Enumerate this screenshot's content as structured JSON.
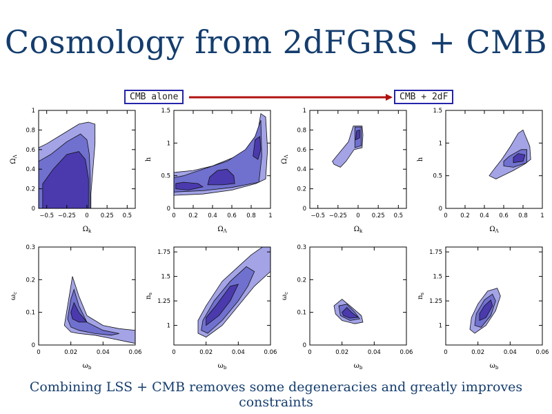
{
  "title": "Cosmology from 2dFGRS + CMB",
  "caption": "Combining LSS + CMB removes some degeneracies and greatly improves constraints",
  "labels": {
    "left": "CMB alone",
    "right": "CMB + 2dF"
  },
  "colors": {
    "arrow": "#b01010",
    "box_border": "#2424a8",
    "contour_outer": "#a3a3e6",
    "contour_mid": "#7070cf",
    "contour_inner": "#4a3aad",
    "title": "#143d6e"
  },
  "chart_data": [
    {
      "type": "contour",
      "group": "CMB alone",
      "xlabel": "Ωk",
      "ylabel": "ΩΛ",
      "xlim": [
        -0.6,
        0.6
      ],
      "ylim": [
        0,
        1
      ],
      "xticks": [
        -0.5,
        -0.25,
        0,
        0.25,
        0.5
      ],
      "xticklabels": [
        "−0.5",
        "−0.25",
        "0",
        "0.25",
        "0.5"
      ],
      "yticks": [
        0,
        0.2,
        0.4,
        0.6,
        0.8,
        1
      ],
      "yticklabels": [
        "0",
        "0.2",
        "0.4",
        "0.6",
        "0.8",
        "1"
      ],
      "regions": [
        [
          [
            -0.6,
            0
          ],
          [
            0.05,
            0
          ],
          [
            0.05,
            0.15
          ],
          [
            0.08,
            0.45
          ],
          [
            0.1,
            0.66
          ],
          [
            0.1,
            0.86
          ],
          [
            0.02,
            0.88
          ],
          [
            -0.1,
            0.86
          ],
          [
            -0.3,
            0.76
          ],
          [
            -0.5,
            0.66
          ],
          [
            -0.6,
            0.62
          ]
        ],
        [
          [
            -0.6,
            0
          ],
          [
            0.04,
            0
          ],
          [
            0.04,
            0.3
          ],
          [
            0.03,
            0.55
          ],
          [
            0.0,
            0.7
          ],
          [
            -0.08,
            0.76
          ],
          [
            -0.25,
            0.68
          ],
          [
            -0.45,
            0.55
          ],
          [
            -0.6,
            0.48
          ]
        ],
        [
          [
            -0.55,
            0
          ],
          [
            0.02,
            0
          ],
          [
            0.02,
            0.3
          ],
          [
            -0.02,
            0.5
          ],
          [
            -0.1,
            0.58
          ],
          [
            -0.25,
            0.55
          ],
          [
            -0.42,
            0.4
          ],
          [
            -0.55,
            0.25
          ]
        ]
      ]
    },
    {
      "type": "contour",
      "group": "CMB alone",
      "xlabel": "ΩΛ",
      "ylabel": "h",
      "xlim": [
        0,
        1
      ],
      "ylim": [
        0,
        1.5
      ],
      "xticks": [
        0,
        0.2,
        0.4,
        0.6,
        0.8,
        1
      ],
      "xticklabels": [
        "0",
        "0.2",
        "0.4",
        "0.6",
        "0.8",
        "1"
      ],
      "yticks": [
        0,
        0.5,
        1,
        1.5
      ],
      "yticklabels": [
        "0",
        "0.5",
        "1",
        "1.5"
      ],
      "regions": [
        [
          [
            0,
            0.2
          ],
          [
            0.3,
            0.22
          ],
          [
            0.6,
            0.28
          ],
          [
            0.85,
            0.38
          ],
          [
            0.95,
            0.45
          ],
          [
            0.97,
            0.9
          ],
          [
            0.95,
            1.4
          ],
          [
            0.9,
            1.45
          ],
          [
            0.86,
            1.1
          ],
          [
            0.8,
            0.95
          ],
          [
            0.65,
            0.8
          ],
          [
            0.4,
            0.65
          ],
          [
            0.2,
            0.58
          ],
          [
            0,
            0.55
          ]
        ],
        [
          [
            0,
            0.25
          ],
          [
            0.3,
            0.27
          ],
          [
            0.6,
            0.32
          ],
          [
            0.88,
            0.4
          ],
          [
            0.91,
            0.8
          ],
          [
            0.9,
            1.35
          ],
          [
            0.84,
            1.1
          ],
          [
            0.74,
            0.9
          ],
          [
            0.55,
            0.72
          ],
          [
            0.3,
            0.6
          ],
          [
            0.1,
            0.5
          ],
          [
            0,
            0.47
          ]
        ],
        [
          [
            0.02,
            0.3
          ],
          [
            0.15,
            0.28
          ],
          [
            0.3,
            0.33
          ],
          [
            0.25,
            0.38
          ],
          [
            0.1,
            0.4
          ],
          [
            0.02,
            0.38
          ]
        ],
        [
          [
            0.35,
            0.36
          ],
          [
            0.5,
            0.36
          ],
          [
            0.63,
            0.38
          ],
          [
            0.62,
            0.5
          ],
          [
            0.55,
            0.6
          ],
          [
            0.45,
            0.58
          ],
          [
            0.37,
            0.48
          ]
        ],
        [
          [
            0.82,
            0.8
          ],
          [
            0.87,
            0.75
          ],
          [
            0.9,
            0.9
          ],
          [
            0.89,
            1.1
          ],
          [
            0.84,
            1.05
          ]
        ]
      ]
    },
    {
      "type": "contour",
      "group": "CMB + 2dF",
      "xlabel": "Ωk",
      "ylabel": "ΩΛ",
      "xlim": [
        -0.6,
        0.6
      ],
      "ylim": [
        0,
        1
      ],
      "xticks": [
        -0.5,
        -0.25,
        0,
        0.25,
        0.5
      ],
      "xticklabels": [
        "−0.5",
        "−0.25",
        "0",
        "0.25",
        "0.5"
      ],
      "yticks": [
        0,
        0.2,
        0.4,
        0.6,
        0.8,
        1
      ],
      "yticklabels": [
        "0",
        "0.2",
        "0.4",
        "0.6",
        "0.8",
        "1"
      ],
      "regions": [
        [
          [
            -0.3,
            0.45
          ],
          [
            -0.22,
            0.42
          ],
          [
            -0.15,
            0.48
          ],
          [
            -0.05,
            0.6
          ],
          [
            0.05,
            0.62
          ],
          [
            0.06,
            0.75
          ],
          [
            0.05,
            0.84
          ],
          [
            -0.06,
            0.84
          ],
          [
            -0.12,
            0.68
          ],
          [
            -0.25,
            0.55
          ],
          [
            -0.32,
            0.48
          ]
        ],
        [
          [
            -0.04,
            0.62
          ],
          [
            0.04,
            0.64
          ],
          [
            0.04,
            0.83
          ],
          [
            -0.04,
            0.83
          ]
        ],
        [
          [
            -0.03,
            0.7
          ],
          [
            0.02,
            0.72
          ],
          [
            0.02,
            0.8
          ],
          [
            -0.02,
            0.79
          ]
        ]
      ]
    },
    {
      "type": "contour",
      "group": "CMB + 2dF",
      "xlabel": "ΩΛ",
      "ylabel": "h",
      "xlim": [
        0,
        1
      ],
      "ylim": [
        0,
        1.5
      ],
      "xticks": [
        0,
        0.2,
        0.4,
        0.6,
        0.8,
        1
      ],
      "xticklabels": [
        "0",
        "0.2",
        "0.4",
        "0.6",
        "0.8",
        "1"
      ],
      "yticks": [
        0,
        0.5,
        1,
        1.5
      ],
      "yticklabels": [
        "0",
        "0.5",
        "1",
        "1.5"
      ],
      "regions": [
        [
          [
            0.45,
            0.5
          ],
          [
            0.52,
            0.45
          ],
          [
            0.7,
            0.58
          ],
          [
            0.82,
            0.68
          ],
          [
            0.88,
            0.75
          ],
          [
            0.87,
            0.95
          ],
          [
            0.8,
            1.2
          ],
          [
            0.75,
            1.15
          ],
          [
            0.67,
            0.95
          ],
          [
            0.58,
            0.75
          ],
          [
            0.5,
            0.6
          ]
        ],
        [
          [
            0.6,
            0.65
          ],
          [
            0.7,
            0.63
          ],
          [
            0.84,
            0.7
          ],
          [
            0.84,
            0.9
          ],
          [
            0.78,
            0.9
          ],
          [
            0.66,
            0.8
          ],
          [
            0.6,
            0.72
          ]
        ],
        [
          [
            0.7,
            0.7
          ],
          [
            0.8,
            0.72
          ],
          [
            0.82,
            0.82
          ],
          [
            0.75,
            0.84
          ],
          [
            0.7,
            0.78
          ]
        ]
      ]
    },
    {
      "type": "contour",
      "group": "CMB alone",
      "xlabel": "ωb",
      "ylabel": "ωc",
      "xlim": [
        0,
        0.06
      ],
      "ylim": [
        0,
        0.3
      ],
      "xticks": [
        0,
        0.02,
        0.04,
        0.06
      ],
      "xticklabels": [
        "0",
        "0.02",
        "0.04",
        "0.06"
      ],
      "yticks": [
        0,
        0.1,
        0.2,
        0.3
      ],
      "yticklabels": [
        "0",
        "0.1",
        "0.2",
        "0.3"
      ],
      "regions": [
        [
          [
            0.016,
            0.06
          ],
          [
            0.018,
            0.12
          ],
          [
            0.021,
            0.21
          ],
          [
            0.025,
            0.15
          ],
          [
            0.03,
            0.09
          ],
          [
            0.04,
            0.06
          ],
          [
            0.05,
            0.05
          ],
          [
            0.06,
            0.045
          ],
          [
            0.06,
            0.005
          ],
          [
            0.055,
            0.01
          ],
          [
            0.045,
            0.02
          ],
          [
            0.035,
            0.03
          ],
          [
            0.025,
            0.035
          ],
          [
            0.02,
            0.04
          ]
        ],
        [
          [
            0.018,
            0.08
          ],
          [
            0.02,
            0.14
          ],
          [
            0.022,
            0.17
          ],
          [
            0.025,
            0.12
          ],
          [
            0.03,
            0.07
          ],
          [
            0.04,
            0.045
          ],
          [
            0.05,
            0.035
          ],
          [
            0.045,
            0.03
          ],
          [
            0.035,
            0.035
          ],
          [
            0.025,
            0.045
          ],
          [
            0.02,
            0.055
          ]
        ],
        [
          [
            0.02,
            0.1
          ],
          [
            0.022,
            0.13
          ],
          [
            0.025,
            0.1
          ],
          [
            0.03,
            0.07
          ],
          [
            0.025,
            0.07
          ],
          [
            0.021,
            0.08
          ]
        ]
      ]
    },
    {
      "type": "contour",
      "group": "CMB alone",
      "xlabel": "ωb",
      "ylabel": "ns",
      "xlim": [
        0,
        0.06
      ],
      "ylim": [
        0.8,
        1.8
      ],
      "xticks": [
        0,
        0.02,
        0.04,
        0.06
      ],
      "xticklabels": [
        "0",
        "0.02",
        "0.04",
        "0.06"
      ],
      "yticks": [
        1,
        1.25,
        1.5,
        1.75
      ],
      "yticklabels": [
        "1",
        "1.25",
        "1.5",
        "1.75"
      ],
      "regions": [
        [
          [
            0.015,
            0.92
          ],
          [
            0.02,
            0.88
          ],
          [
            0.03,
            1.0
          ],
          [
            0.04,
            1.2
          ],
          [
            0.05,
            1.4
          ],
          [
            0.06,
            1.55
          ],
          [
            0.06,
            1.8
          ],
          [
            0.055,
            1.8
          ],
          [
            0.048,
            1.72
          ],
          [
            0.04,
            1.6
          ],
          [
            0.03,
            1.45
          ],
          [
            0.02,
            1.2
          ],
          [
            0.015,
            1.05
          ]
        ],
        [
          [
            0.017,
            0.95
          ],
          [
            0.021,
            0.92
          ],
          [
            0.03,
            1.05
          ],
          [
            0.04,
            1.25
          ],
          [
            0.046,
            1.4
          ],
          [
            0.05,
            1.55
          ],
          [
            0.045,
            1.6
          ],
          [
            0.035,
            1.45
          ],
          [
            0.025,
            1.25
          ],
          [
            0.018,
            1.05
          ]
        ],
        [
          [
            0.02,
            1.0
          ],
          [
            0.028,
            1.1
          ],
          [
            0.035,
            1.25
          ],
          [
            0.04,
            1.42
          ],
          [
            0.035,
            1.4
          ],
          [
            0.026,
            1.2
          ],
          [
            0.02,
            1.08
          ]
        ]
      ]
    },
    {
      "type": "contour",
      "group": "CMB + 2dF",
      "xlabel": "ωb",
      "ylabel": "ωc",
      "xlim": [
        0,
        0.06
      ],
      "ylim": [
        0,
        0.3
      ],
      "xticks": [
        0,
        0.02,
        0.04,
        0.06
      ],
      "xticklabels": [
        "0",
        "0.02",
        "0.04",
        "0.06"
      ],
      "yticks": [
        0,
        0.1,
        0.2,
        0.3
      ],
      "yticklabels": [
        "0",
        "0.1",
        "0.2",
        "0.3"
      ],
      "regions": [
        [
          [
            0.015,
            0.12
          ],
          [
            0.02,
            0.14
          ],
          [
            0.025,
            0.12
          ],
          [
            0.032,
            0.09
          ],
          [
            0.033,
            0.07
          ],
          [
            0.028,
            0.065
          ],
          [
            0.02,
            0.075
          ],
          [
            0.016,
            0.095
          ]
        ],
        [
          [
            0.018,
            0.12
          ],
          [
            0.023,
            0.125
          ],
          [
            0.028,
            0.1
          ],
          [
            0.031,
            0.08
          ],
          [
            0.025,
            0.075
          ],
          [
            0.019,
            0.09
          ]
        ],
        [
          [
            0.02,
            0.1
          ],
          [
            0.023,
            0.115
          ],
          [
            0.026,
            0.1
          ],
          [
            0.03,
            0.085
          ],
          [
            0.025,
            0.082
          ],
          [
            0.021,
            0.09
          ]
        ]
      ]
    },
    {
      "type": "contour",
      "group": "CMB + 2dF",
      "xlabel": "ωb",
      "ylabel": "ns",
      "xlim": [
        0,
        0.06
      ],
      "ylim": [
        0.8,
        1.8
      ],
      "xticks": [
        0,
        0.02,
        0.04,
        0.06
      ],
      "xticklabels": [
        "0",
        "0.02",
        "0.04",
        "0.06"
      ],
      "yticks": [
        1,
        1.25,
        1.5,
        1.75
      ],
      "yticklabels": [
        "1",
        "1.25",
        "1.5",
        "1.75"
      ],
      "regions": [
        [
          [
            0.015,
            0.96
          ],
          [
            0.018,
            0.92
          ],
          [
            0.025,
            1.0
          ],
          [
            0.031,
            1.15
          ],
          [
            0.034,
            1.3
          ],
          [
            0.032,
            1.38
          ],
          [
            0.026,
            1.35
          ],
          [
            0.02,
            1.22
          ],
          [
            0.016,
            1.08
          ]
        ],
        [
          [
            0.018,
            1.0
          ],
          [
            0.022,
            0.98
          ],
          [
            0.028,
            1.1
          ],
          [
            0.031,
            1.25
          ],
          [
            0.029,
            1.32
          ],
          [
            0.024,
            1.26
          ],
          [
            0.019,
            1.12
          ]
        ],
        [
          [
            0.021,
            1.05
          ],
          [
            0.025,
            1.08
          ],
          [
            0.029,
            1.2
          ],
          [
            0.028,
            1.26
          ],
          [
            0.024,
            1.2
          ],
          [
            0.021,
            1.12
          ]
        ]
      ]
    }
  ]
}
